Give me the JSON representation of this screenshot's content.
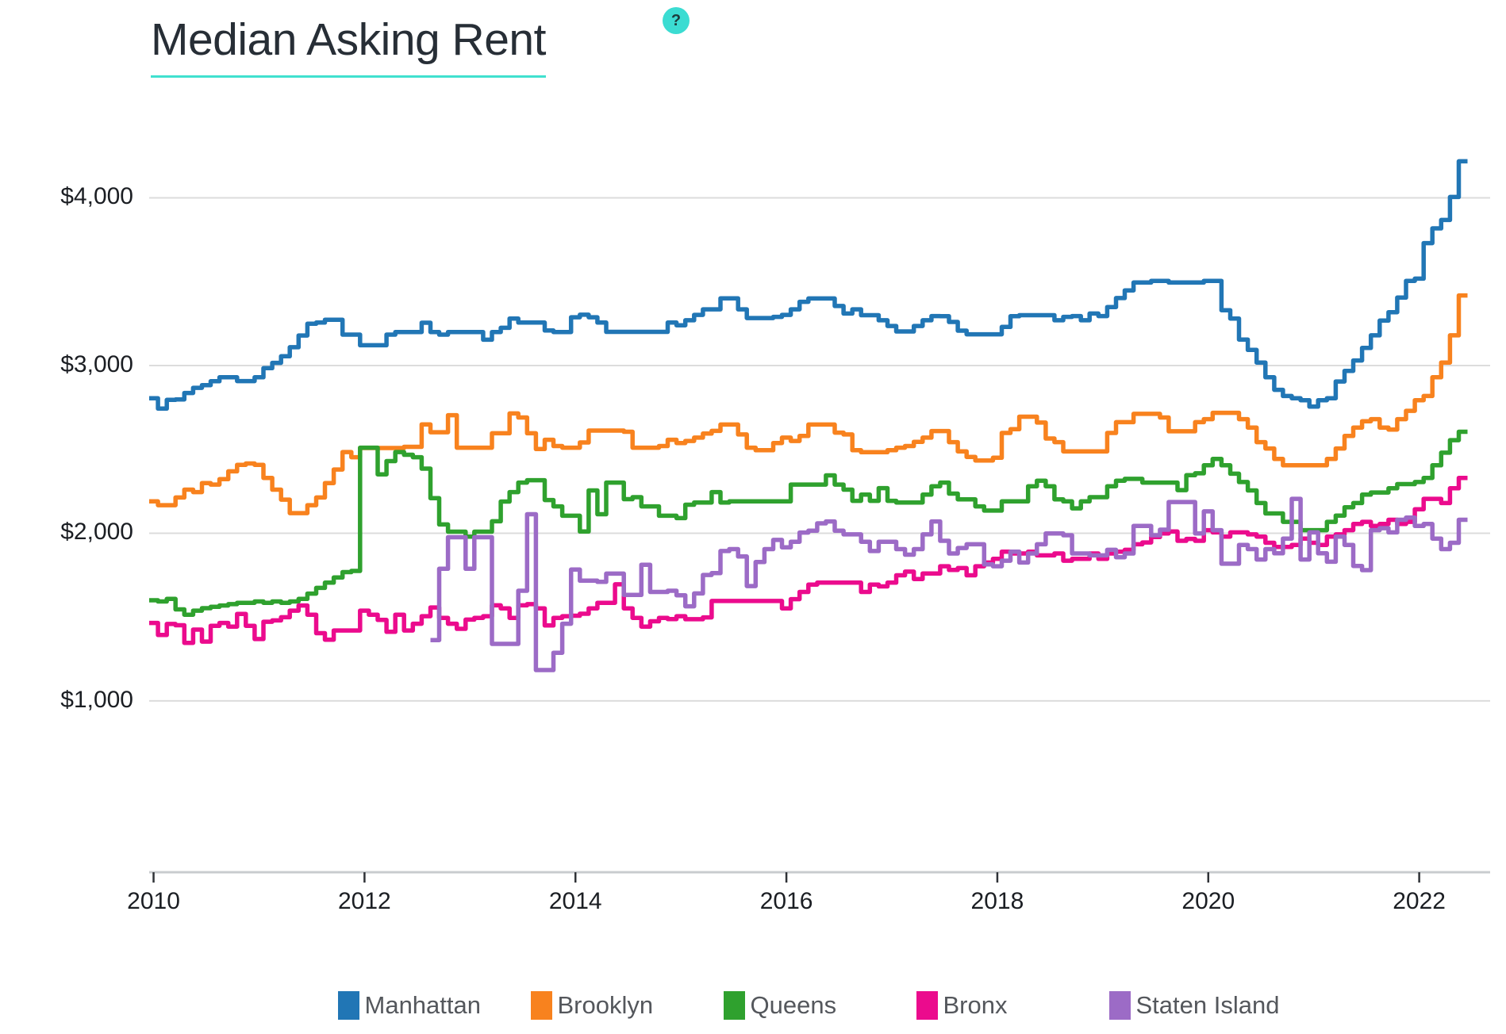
{
  "header": {
    "title": "Median Asking Rent",
    "help_label": "?"
  },
  "colors": {
    "background": "#FFFFFF",
    "title_text": "#272E36",
    "accent_underline": "#40E0CF",
    "help_bg": "#3BDCD2",
    "help_fg": "#1D3C3C",
    "grid": "#DCDCDC",
    "axis_line": "#C9CCCF",
    "tick_mark": "#2F3237",
    "axis_text": "#1B1E23",
    "legend_text": "#54575C"
  },
  "chart_data": {
    "type": "line",
    "step": true,
    "title": "Median Asking Rent",
    "x_unit": "month",
    "x_start": "2010-01",
    "x_end": "2022-06",
    "months_count": 150,
    "x_tick_years": [
      2010,
      2012,
      2014,
      2016,
      2018,
      2020,
      2022
    ],
    "x_tick_labels": [
      "2010",
      "2012",
      "2014",
      "2016",
      "2018",
      "2020",
      "2022"
    ],
    "y_ticks": [
      1000,
      2000,
      3000,
      4000
    ],
    "y_tick_labels": [
      "$1,000",
      "$2,000",
      "$3,000",
      "$4,000"
    ],
    "ylim": [
      0,
      4400
    ],
    "grid": "horizontal",
    "legend_position": "bottom",
    "series": [
      {
        "name": "Manhattan",
        "color": "#2176B5",
        "start_index": 0,
        "values": [
          2805,
          2743,
          2795,
          2798,
          2836,
          2867,
          2883,
          2906,
          2930,
          2930,
          2907,
          2907,
          2930,
          2984,
          3016,
          3055,
          3109,
          3179,
          3249,
          3256,
          3273,
          3273,
          3184,
          3184,
          3121,
          3121,
          3121,
          3184,
          3200,
          3200,
          3200,
          3255,
          3200,
          3184,
          3200,
          3200,
          3200,
          3200,
          3154,
          3200,
          3225,
          3280,
          3256,
          3256,
          3256,
          3209,
          3200,
          3200,
          3288,
          3303,
          3288,
          3256,
          3201,
          3201,
          3201,
          3201,
          3201,
          3201,
          3201,
          3256,
          3240,
          3270,
          3302,
          3335,
          3335,
          3401,
          3401,
          3335,
          3283,
          3283,
          3283,
          3290,
          3302,
          3335,
          3380,
          3400,
          3400,
          3400,
          3355,
          3310,
          3335,
          3300,
          3300,
          3270,
          3236,
          3203,
          3203,
          3236,
          3270,
          3295,
          3294,
          3260,
          3208,
          3186,
          3186,
          3186,
          3186,
          3230,
          3294,
          3300,
          3300,
          3300,
          3300,
          3270,
          3290,
          3295,
          3270,
          3310,
          3295,
          3349,
          3402,
          3448,
          3495,
          3495,
          3505,
          3505,
          3495,
          3495,
          3495,
          3495,
          3505,
          3505,
          3330,
          3280,
          3155,
          3093,
          3018,
          2930,
          2855,
          2818,
          2805,
          2793,
          2755,
          2793,
          2805,
          2905,
          2968,
          3030,
          3105,
          3180,
          3268,
          3318,
          3405,
          3505,
          3518,
          3730,
          3818,
          3868,
          4005,
          4218
        ]
      },
      {
        "name": "Brooklyn",
        "color": "#F8821E",
        "start_index": 0,
        "values": [
          2190,
          2167,
          2167,
          2213,
          2260,
          2245,
          2299,
          2290,
          2322,
          2369,
          2408,
          2416,
          2408,
          2330,
          2260,
          2200,
          2120,
          2120,
          2167,
          2213,
          2299,
          2380,
          2484,
          2453,
          2508,
          2508,
          2508,
          2508,
          2508,
          2515,
          2515,
          2649,
          2602,
          2602,
          2704,
          2510,
          2510,
          2510,
          2510,
          2596,
          2596,
          2714,
          2690,
          2596,
          2502,
          2557,
          2520,
          2510,
          2510,
          2541,
          2612,
          2612,
          2612,
          2612,
          2605,
          2510,
          2510,
          2510,
          2520,
          2557,
          2538,
          2550,
          2570,
          2594,
          2610,
          2648,
          2648,
          2589,
          2510,
          2495,
          2495,
          2538,
          2570,
          2550,
          2580,
          2648,
          2648,
          2648,
          2600,
          2589,
          2495,
          2483,
          2483,
          2483,
          2495,
          2510,
          2520,
          2545,
          2570,
          2609,
          2609,
          2543,
          2488,
          2455,
          2434,
          2434,
          2450,
          2598,
          2620,
          2695,
          2695,
          2660,
          2565,
          2543,
          2488,
          2488,
          2488,
          2488,
          2488,
          2598,
          2662,
          2662,
          2712,
          2712,
          2712,
          2690,
          2608,
          2608,
          2608,
          2662,
          2680,
          2718,
          2718,
          2718,
          2680,
          2630,
          2543,
          2505,
          2443,
          2405,
          2405,
          2405,
          2405,
          2405,
          2443,
          2505,
          2580,
          2630,
          2668,
          2680,
          2630,
          2618,
          2680,
          2730,
          2793,
          2818,
          2930,
          3018,
          3180,
          3418
        ]
      },
      {
        "name": "Queens",
        "color": "#2FA12E",
        "start_index": 0,
        "values": [
          1600,
          1593,
          1608,
          1546,
          1514,
          1538,
          1553,
          1561,
          1569,
          1577,
          1585,
          1585,
          1593,
          1585,
          1593,
          1585,
          1593,
          1608,
          1640,
          1674,
          1705,
          1736,
          1768,
          1775,
          2510,
          2510,
          2351,
          2430,
          2484,
          2468,
          2453,
          2385,
          2209,
          2052,
          2009,
          2009,
          1980,
          2009,
          2009,
          2071,
          2189,
          2245,
          2302,
          2316,
          2316,
          2198,
          2160,
          2104,
          2104,
          2010,
          2255,
          2113,
          2302,
          2302,
          2203,
          2215,
          2160,
          2160,
          2104,
          2104,
          2090,
          2170,
          2183,
          2183,
          2245,
          2183,
          2190,
          2190,
          2190,
          2190,
          2190,
          2190,
          2190,
          2290,
          2290,
          2290,
          2290,
          2345,
          2290,
          2260,
          2193,
          2230,
          2193,
          2269,
          2193,
          2183,
          2183,
          2183,
          2230,
          2280,
          2302,
          2236,
          2202,
          2202,
          2160,
          2135,
          2135,
          2190,
          2190,
          2190,
          2280,
          2313,
          2280,
          2202,
          2190,
          2148,
          2190,
          2215,
          2215,
          2280,
          2313,
          2324,
          2324,
          2302,
          2302,
          2302,
          2302,
          2257,
          2346,
          2357,
          2405,
          2443,
          2405,
          2355,
          2305,
          2255,
          2180,
          2118,
          2118,
          2068,
          2068,
          2018,
          2018,
          2018,
          2068,
          2105,
          2155,
          2180,
          2230,
          2243,
          2243,
          2268,
          2293,
          2293,
          2305,
          2330,
          2405,
          2480,
          2555,
          2605
        ]
      },
      {
        "name": "Bronx",
        "color": "#EB0B8D",
        "start_index": 0,
        "values": [
          1465,
          1393,
          1459,
          1451,
          1346,
          1425,
          1354,
          1448,
          1465,
          1443,
          1519,
          1448,
          1369,
          1472,
          1480,
          1499,
          1538,
          1569,
          1514,
          1404,
          1365,
          1420,
          1420,
          1420,
          1538,
          1514,
          1483,
          1412,
          1514,
          1420,
          1460,
          1505,
          1557,
          1495,
          1460,
          1430,
          1485,
          1495,
          1505,
          1570,
          1552,
          1495,
          1570,
          1577,
          1552,
          1450,
          1495,
          1505,
          1508,
          1520,
          1552,
          1585,
          1585,
          1695,
          1552,
          1495,
          1443,
          1475,
          1495,
          1488,
          1505,
          1487,
          1487,
          1498,
          1596,
          1596,
          1596,
          1596,
          1596,
          1596,
          1596,
          1596,
          1552,
          1607,
          1650,
          1694,
          1705,
          1705,
          1705,
          1705,
          1705,
          1650,
          1694,
          1683,
          1705,
          1749,
          1771,
          1727,
          1760,
          1760,
          1803,
          1781,
          1792,
          1749,
          1803,
          1825,
          1847,
          1890,
          1879,
          1879,
          1890,
          1868,
          1868,
          1879,
          1836,
          1847,
          1847,
          1879,
          1847,
          1879,
          1890,
          1901,
          1934,
          1945,
          1977,
          1999,
          2010,
          1955,
          1966,
          1955,
          2018,
          2005,
          1980,
          2005,
          2005,
          1993,
          1980,
          1943,
          1918,
          1918,
          1930,
          1968,
          1943,
          1930,
          1980,
          1993,
          2018,
          2055,
          2068,
          2043,
          2055,
          2080,
          2055,
          2068,
          2143,
          2205,
          2205,
          2180,
          2268,
          2330
        ]
      },
      {
        "name": "Staten Island",
        "color": "#9C6BC6",
        "start_index": 32,
        "values": [
          1363,
          1788,
          1976,
          1976,
          1788,
          1976,
          1976,
          1340,
          1340,
          1340,
          1657,
          2113,
          1184,
          1184,
          1287,
          1460,
          1783,
          1717,
          1717,
          1710,
          1759,
          1759,
          1632,
          1632,
          1812,
          1650,
          1650,
          1657,
          1630,
          1564,
          1641,
          1751,
          1762,
          1894,
          1905,
          1861,
          1685,
          1828,
          1905,
          1960,
          1916,
          1949,
          2004,
          2015,
          2059,
          2070,
          2015,
          1993,
          1993,
          1949,
          1894,
          1949,
          1949,
          1905,
          1872,
          1905,
          1993,
          2070,
          1955,
          1879,
          1912,
          1934,
          1934,
          1814,
          1803,
          1836,
          1890,
          1825,
          1879,
          1934,
          1999,
          1999,
          1988,
          1879,
          1879,
          1868,
          1868,
          1901,
          1857,
          1879,
          2043,
          2043,
          1988,
          2021,
          2186,
          2186,
          2186,
          1999,
          2130,
          2018,
          1818,
          1818,
          1930,
          1905,
          1843,
          1905,
          1880,
          1968,
          2205,
          1843,
          2005,
          1880,
          1830,
          1980,
          1930,
          1805,
          1780,
          2018,
          2030,
          2005,
          2080,
          2093,
          2043,
          2055,
          1968,
          1905,
          1943,
          2080
        ]
      }
    ]
  }
}
